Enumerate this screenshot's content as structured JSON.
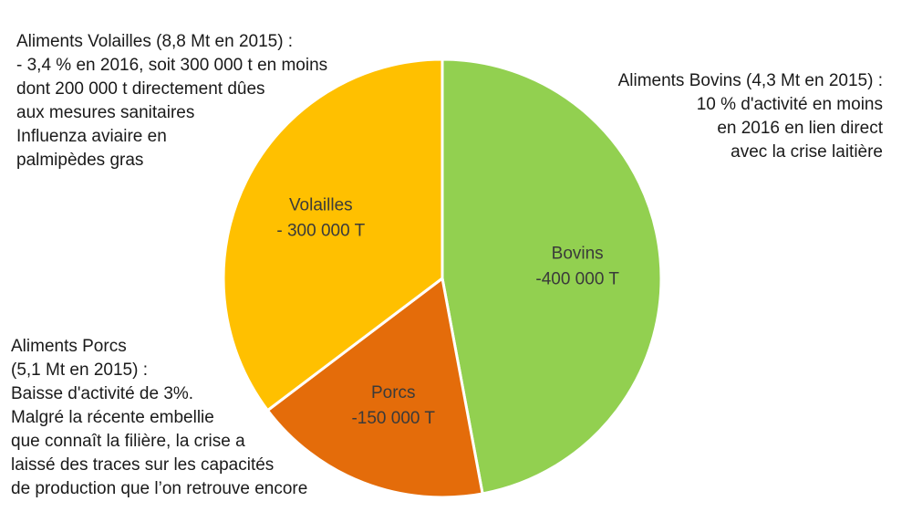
{
  "chart_data": {
    "type": "pie",
    "unit": "T",
    "slices": [
      {
        "name": "Bovins",
        "value": 400000,
        "label_lines": [
          "Bovins",
          "-400 000 T"
        ],
        "color": "#92d050"
      },
      {
        "name": "Porcs",
        "value": 150000,
        "label_lines": [
          "Porcs",
          "-150 000 T"
        ],
        "color": "#e46c0a"
      },
      {
        "name": "Volailles",
        "value": 300000,
        "label_lines": [
          "Volailles",
          "- 300 000 T"
        ],
        "color": "#ffc000"
      }
    ],
    "start_angle_deg": 0,
    "direction": "clockwise",
    "border_color": "#ffffff"
  },
  "annotations": {
    "volailles": [
      "Aliments Volailles (8,8 Mt en 2015) :",
      "- 3,4 % en 2016, soit 300 000 t en moins",
      "dont 200 000 t directement dûes",
      "aux mesures sanitaires",
      "Influenza aviaire en",
      "palmipèdes gras"
    ],
    "bovins": [
      "Aliments Bovins (4,3 Mt en 2015) :",
      "10 % d'activité en moins",
      "en 2016 en lien direct",
      "avec la crise laitière"
    ],
    "porcs": [
      "Aliments Porcs",
      "(5,1 Mt en 2015) :",
      "Baisse d'activité de 3%.",
      "Malgré la récente embellie",
      "que connaît la filière, la crise a",
      "laissé des traces sur les capacités",
      "de production que l’on retrouve encore"
    ]
  }
}
